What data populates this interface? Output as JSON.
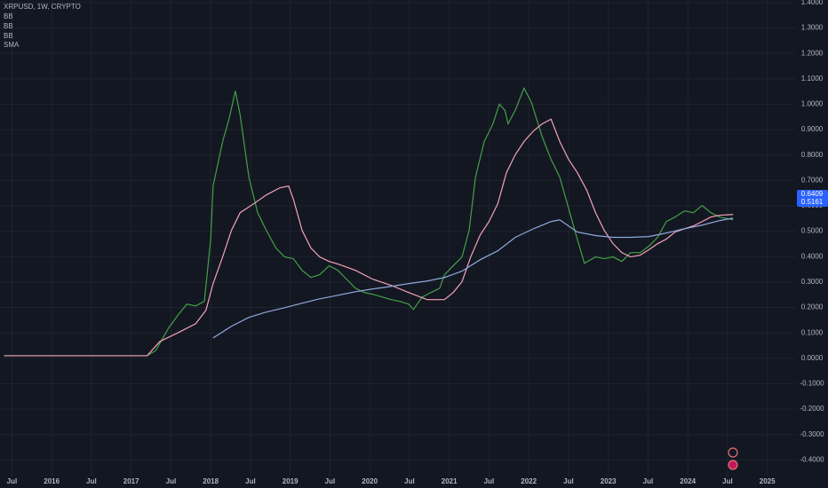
{
  "chart_data": {
    "type": "line",
    "legend": [
      "XRPUSD, 1W, CRYPTO",
      "BB",
      "BB",
      "BB",
      "SMA"
    ],
    "price_labels": [
      "0.6409",
      "0.5161"
    ],
    "xlim": [
      2015.35,
      2025.35
    ],
    "ylim": [
      -0.465,
      1.41
    ],
    "grid": true,
    "background": "#131722",
    "xticks": [
      {
        "value": 2015.5,
        "label": "Jul"
      },
      2016,
      {
        "value": 2016.5,
        "label": "Jul"
      },
      2017,
      {
        "value": 2017.5,
        "label": "Jul"
      },
      2018,
      {
        "value": 2018.5,
        "label": "Jul"
      },
      2019,
      {
        "value": 2019.5,
        "label": "Jul"
      },
      2020,
      {
        "value": 2020.5,
        "label": "Jul"
      },
      2021,
      {
        "value": 2021.5,
        "label": "Jul"
      },
      2022,
      {
        "value": 2022.5,
        "label": "Jul"
      },
      2023,
      {
        "value": 2023.5,
        "label": "Jul"
      },
      2024,
      {
        "value": 2024.5,
        "label": "Jul"
      },
      2025
    ],
    "yticks": [
      {
        "value": 1.4,
        "label": "1.4000"
      },
      {
        "value": 1.3,
        "label": "1.3000"
      },
      {
        "value": 1.2,
        "label": "1.2000"
      },
      {
        "value": 1.1,
        "label": "1.1000"
      },
      {
        "value": 1.0,
        "label": "1.0000"
      },
      {
        "value": 0.9,
        "label": "0.9000"
      },
      {
        "value": 0.8,
        "label": "0.8000"
      },
      {
        "value": 0.7,
        "label": "0.7000"
      },
      {
        "value": 0.6,
        "label": "0.6000"
      },
      {
        "value": 0.5,
        "label": "0.5000"
      },
      {
        "value": 0.4,
        "label": "0.4000"
      },
      {
        "value": 0.3,
        "label": "0.3000"
      },
      {
        "value": 0.2,
        "label": "0.2000"
      },
      {
        "value": 0.1,
        "label": "0.1000"
      },
      {
        "value": 0,
        "label": "0.0000"
      },
      {
        "value": -0.1,
        "label": "-0.1000"
      },
      {
        "value": -0.2,
        "label": "-0.2000"
      },
      {
        "value": -0.3,
        "label": "-0.3000"
      },
      {
        "value": -0.4,
        "label": "-0.4000"
      }
    ],
    "series": [
      {
        "color": "#43a047",
        "x": [
          2015.4,
          2017.2,
          2017.31,
          2017.47,
          2017.59,
          2017.7,
          2017.81,
          2017.92,
          2018.0,
          2018.03,
          2018.15,
          2018.23,
          2018.31,
          2018.37,
          2018.48,
          2018.59,
          2018.7,
          2018.82,
          2018.93,
          2019.04,
          2019.15,
          2019.26,
          2019.37,
          2019.49,
          2019.6,
          2019.71,
          2019.82,
          2019.93,
          2020.04,
          2020.16,
          2020.27,
          2020.38,
          2020.49,
          2020.55,
          2020.66,
          2020.77,
          2020.88,
          2020.94,
          2021.05,
          2021.16,
          2021.25,
          2021.33,
          2021.44,
          2021.55,
          2021.63,
          2021.7,
          2021.74,
          2021.83,
          2021.94,
          2022.03,
          2022.17,
          2022.28,
          2022.39,
          2022.5,
          2022.61,
          2022.7,
          2022.84,
          2022.95,
          2023.06,
          2023.17,
          2023.28,
          2023.4,
          2023.51,
          2023.62,
          2023.73,
          2023.84,
          2023.96,
          2024.07,
          2024.18,
          2024.29,
          2024.4,
          2024.57
        ],
        "values": [
          0.01,
          0.01,
          0.031,
          0.119,
          0.171,
          0.213,
          0.206,
          0.224,
          0.469,
          0.678,
          0.853,
          0.941,
          1.052,
          0.958,
          0.713,
          0.573,
          0.503,
          0.434,
          0.399,
          0.392,
          0.346,
          0.318,
          0.329,
          0.364,
          0.346,
          0.311,
          0.276,
          0.259,
          0.252,
          0.241,
          0.231,
          0.224,
          0.213,
          0.192,
          0.241,
          0.259,
          0.276,
          0.329,
          0.364,
          0.399,
          0.503,
          0.713,
          0.853,
          0.923,
          1.0,
          0.976,
          0.923,
          0.976,
          1.063,
          1.01,
          0.871,
          0.783,
          0.713,
          0.591,
          0.469,
          0.374,
          0.399,
          0.392,
          0.399,
          0.381,
          0.416,
          0.416,
          0.441,
          0.476,
          0.538,
          0.556,
          0.58,
          0.573,
          0.601,
          0.573,
          0.556,
          0.545
        ]
      },
      {
        "color": "#f4a3b8",
        "x": [
          2015.4,
          2017.2,
          2017.36,
          2017.59,
          2017.81,
          2017.94,
          2018.03,
          2018.15,
          2018.26,
          2018.37,
          2018.54,
          2018.7,
          2018.87,
          2018.98,
          2019.04,
          2019.15,
          2019.26,
          2019.37,
          2019.49,
          2019.6,
          2019.82,
          2020.04,
          2020.27,
          2020.49,
          2020.72,
          2020.94,
          2021.05,
          2021.16,
          2021.27,
          2021.39,
          2021.5,
          2021.61,
          2021.72,
          2021.83,
          2021.94,
          2022.06,
          2022.17,
          2022.28,
          2022.39,
          2022.5,
          2022.61,
          2022.73,
          2022.84,
          2022.95,
          2023.06,
          2023.17,
          2023.28,
          2023.4,
          2023.51,
          2023.62,
          2023.73,
          2023.84,
          2023.96,
          2024.07,
          2024.18,
          2024.29,
          2024.4,
          2024.57
        ],
        "values": [
          0.01,
          0.01,
          0.066,
          0.101,
          0.136,
          0.189,
          0.294,
          0.399,
          0.503,
          0.573,
          0.608,
          0.643,
          0.671,
          0.678,
          0.626,
          0.503,
          0.434,
          0.399,
          0.381,
          0.371,
          0.346,
          0.311,
          0.287,
          0.259,
          0.231,
          0.231,
          0.259,
          0.301,
          0.399,
          0.486,
          0.538,
          0.608,
          0.731,
          0.801,
          0.853,
          0.895,
          0.923,
          0.941,
          0.853,
          0.783,
          0.731,
          0.661,
          0.573,
          0.503,
          0.451,
          0.416,
          0.399,
          0.406,
          0.427,
          0.451,
          0.469,
          0.497,
          0.51,
          0.521,
          0.538,
          0.556,
          0.563,
          0.566
        ]
      },
      {
        "color": "#8fa9dc",
        "x": [
          2018.03,
          2018.26,
          2018.48,
          2018.7,
          2018.93,
          2019.15,
          2019.37,
          2019.6,
          2019.82,
          2020.04,
          2020.27,
          2020.49,
          2020.72,
          2020.94,
          2021.16,
          2021.39,
          2021.61,
          2021.83,
          2022.06,
          2022.28,
          2022.39,
          2022.5,
          2022.61,
          2022.84,
          2023.06,
          2023.28,
          2023.51,
          2023.73,
          2023.96,
          2024.18,
          2024.4,
          2024.57
        ],
        "values": [
          0.08,
          0.126,
          0.161,
          0.182,
          0.199,
          0.217,
          0.234,
          0.248,
          0.262,
          0.273,
          0.283,
          0.294,
          0.304,
          0.318,
          0.343,
          0.388,
          0.423,
          0.476,
          0.51,
          0.538,
          0.545,
          0.521,
          0.497,
          0.483,
          0.476,
          0.476,
          0.479,
          0.493,
          0.51,
          0.524,
          0.542,
          0.552
        ]
      }
    ]
  }
}
